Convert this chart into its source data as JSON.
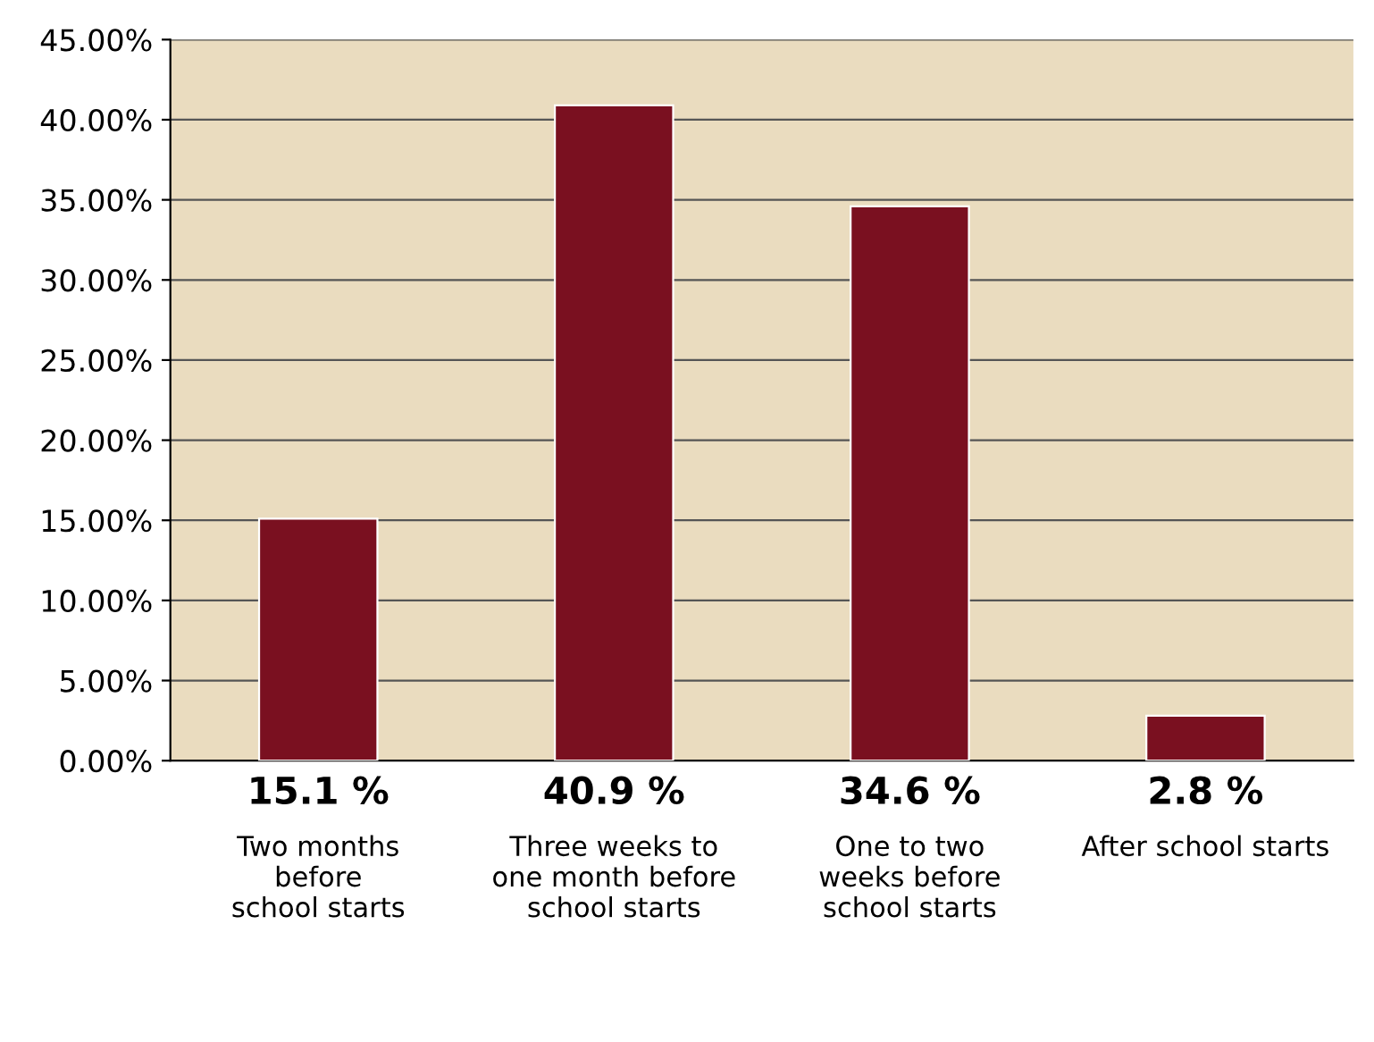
{
  "chart_data": {
    "type": "bar",
    "categories": [
      "Two months\nbefore\nschool starts",
      "Three weeks to\none month before\nschool starts",
      "One to two\nweeks before\nschool starts",
      "After school starts"
    ],
    "values": [
      15.1,
      40.9,
      34.6,
      2.8
    ],
    "value_labels": [
      "15.1 %",
      "40.9 %",
      "34.6 %",
      "2.8 %"
    ],
    "color": "#7a1020",
    "ylim": [
      0,
      45
    ],
    "yticks": [
      {
        "value": 0,
        "label": "0.00%"
      },
      {
        "value": 5,
        "label": "5.00%"
      },
      {
        "value": 10,
        "label": "10.00%"
      },
      {
        "value": 15,
        "label": "15.00%"
      },
      {
        "value": 20,
        "label": "20.00%"
      },
      {
        "value": 25,
        "label": "25.00%"
      },
      {
        "value": 30,
        "label": "30.00%"
      },
      {
        "value": 35,
        "label": "35.00%"
      },
      {
        "value": 40,
        "label": "40.00%"
      },
      {
        "value": 45,
        "label": "45.00%"
      }
    ],
    "grid": "y"
  }
}
